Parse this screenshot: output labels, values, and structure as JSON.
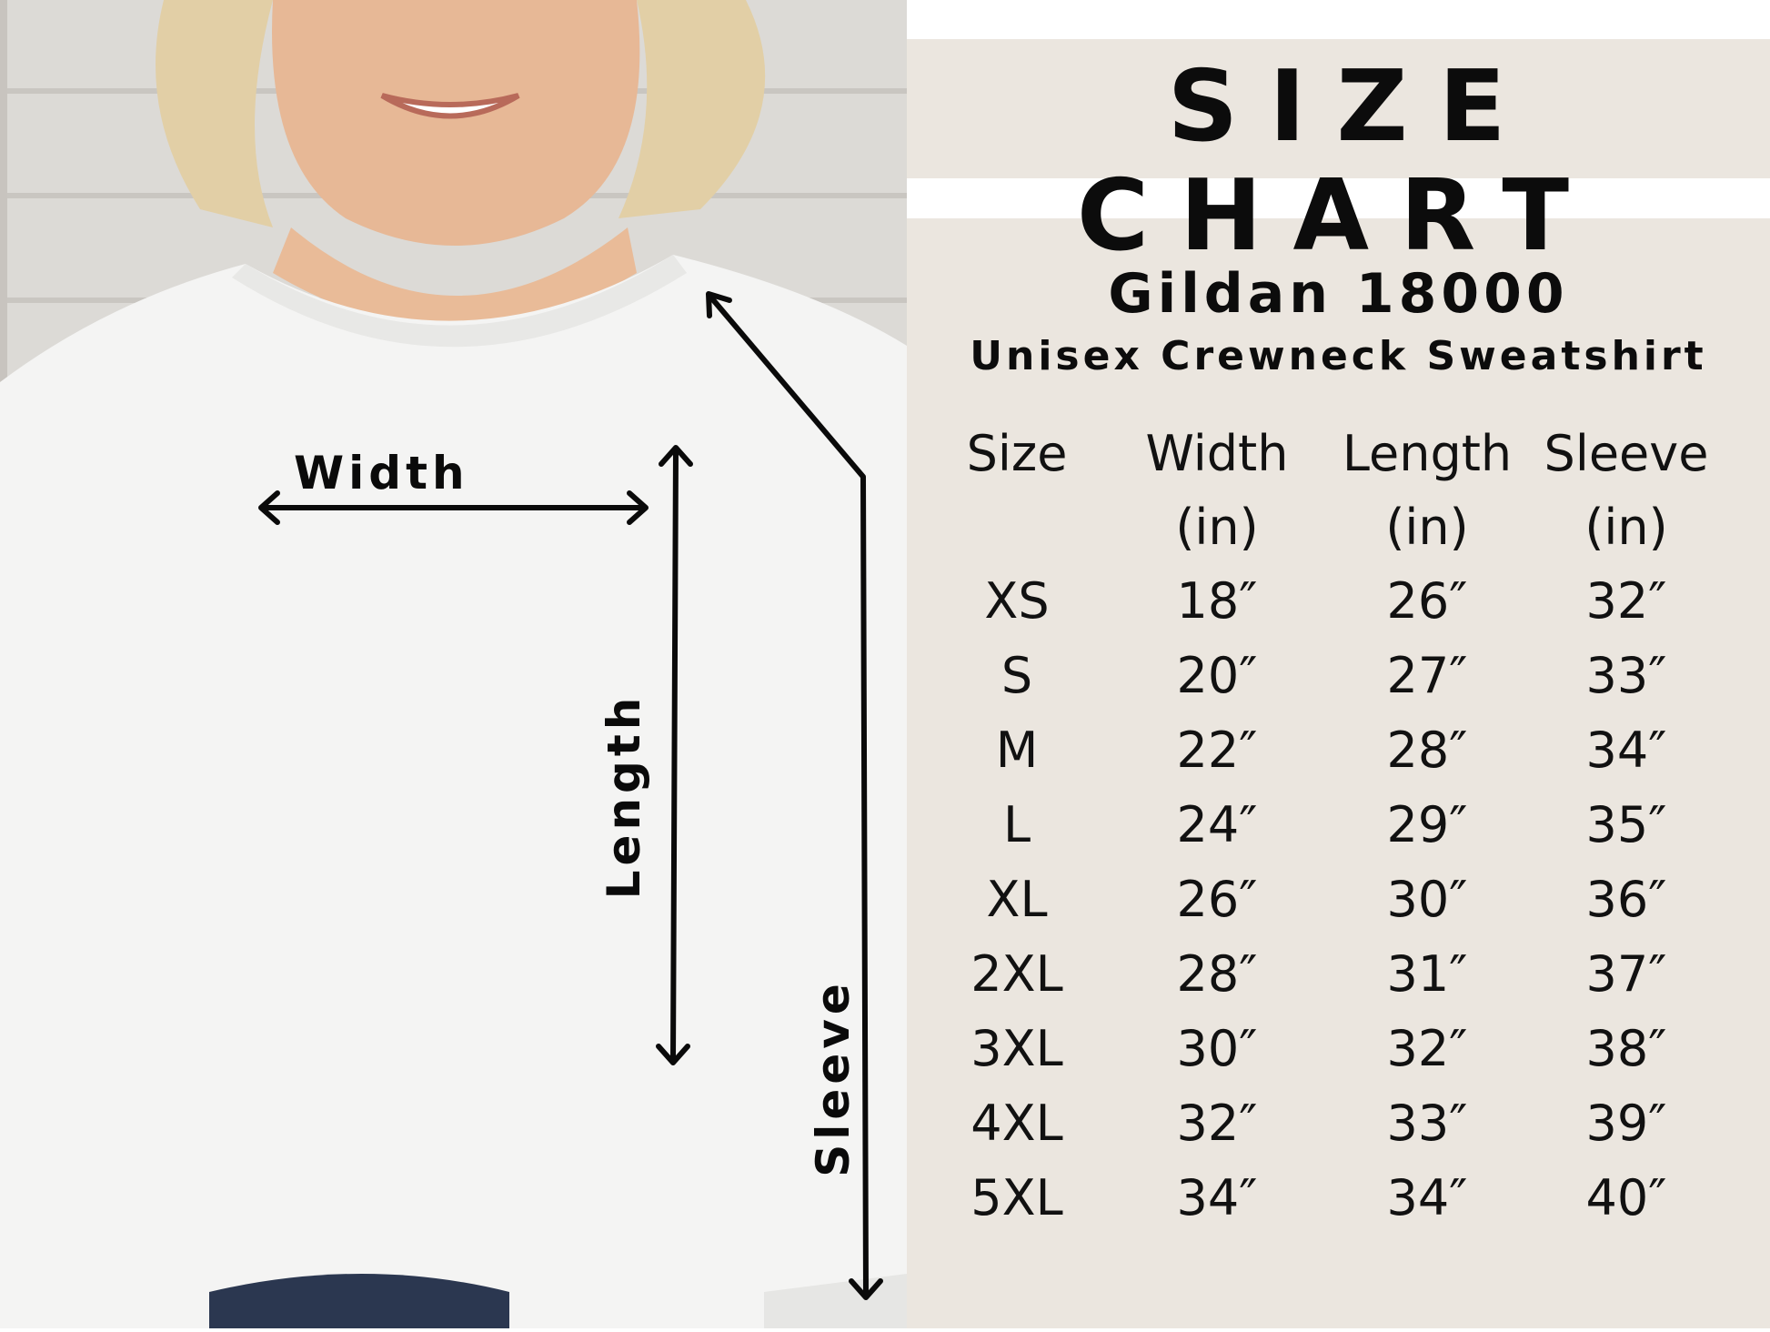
{
  "title": "SIZE CHART",
  "brand": "Gildan 18000",
  "product": "Unisex Crewneck Sweatshirt",
  "photo_labels": {
    "width": "Width",
    "length": "Length",
    "sleeve": "Sleeve"
  },
  "table": {
    "headers": [
      "Size",
      "Width",
      "Length",
      "Sleeve"
    ],
    "units": [
      "",
      "(in)",
      "(in)",
      "(in)"
    ],
    "rows": [
      [
        "XS",
        "18″",
        "26″",
        "32″"
      ],
      [
        "S",
        "20″",
        "27″",
        "33″"
      ],
      [
        "M",
        "22″",
        "28″",
        "34″"
      ],
      [
        "L",
        "24″",
        "29″",
        "35″"
      ],
      [
        "XL",
        "26″",
        "30″",
        "36″"
      ],
      [
        "2XL",
        "28″",
        "31″",
        "37″"
      ],
      [
        "3XL",
        "30″",
        "32″",
        "38″"
      ],
      [
        "4XL",
        "32″",
        "33″",
        "39″"
      ],
      [
        "5XL",
        "34″",
        "34″",
        "40″"
      ]
    ]
  },
  "colors": {
    "panel": "#ebe6df",
    "text": "#0c0c0c"
  }
}
